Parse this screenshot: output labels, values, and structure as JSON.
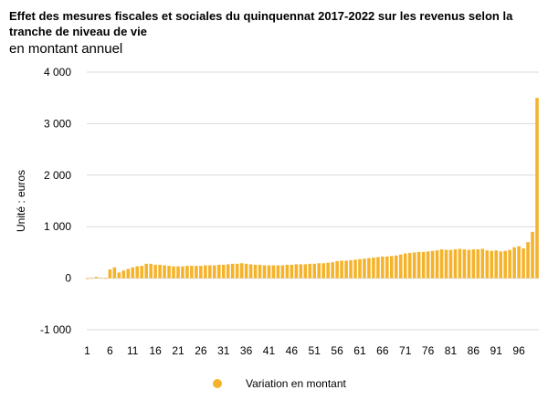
{
  "chart_data": {
    "type": "bar",
    "title": "Effet des mesures fiscales et sociales du quinquennat 2017-2022 sur les revenus selon la tranche de niveau de vie",
    "subtitle": "en montant annuel",
    "ylabel": "Unité : euros",
    "xlabel": "",
    "ylim": [
      -1000,
      4000
    ],
    "yticks": [
      -1000,
      0,
      1000,
      2000,
      3000,
      4000
    ],
    "ytick_labels": [
      "-1 000",
      "0",
      "1 000",
      "2 000",
      "3 000",
      "4 000"
    ],
    "xtick_labels": [
      "1",
      "6",
      "11",
      "16",
      "21",
      "26",
      "31",
      "36",
      "41",
      "46",
      "51",
      "56",
      "61",
      "66",
      "71",
      "76",
      "81",
      "86",
      "91",
      "96"
    ],
    "grid": "horizontal",
    "legend_position": "bottom",
    "color": "#F5B32B",
    "x": [
      1,
      2,
      3,
      4,
      5,
      6,
      7,
      8,
      9,
      10,
      11,
      12,
      13,
      14,
      15,
      16,
      17,
      18,
      19,
      20,
      21,
      22,
      23,
      24,
      25,
      26,
      27,
      28,
      29,
      30,
      31,
      32,
      33,
      34,
      35,
      36,
      37,
      38,
      39,
      40,
      41,
      42,
      43,
      44,
      45,
      46,
      47,
      48,
      49,
      50,
      51,
      52,
      53,
      54,
      55,
      56,
      57,
      58,
      59,
      60,
      61,
      62,
      63,
      64,
      65,
      66,
      67,
      68,
      69,
      70,
      71,
      72,
      73,
      74,
      75,
      76,
      77,
      78,
      79,
      80,
      81,
      82,
      83,
      84,
      85,
      86,
      87,
      88,
      89,
      90,
      91,
      92,
      93,
      94,
      95,
      96,
      97,
      98,
      99,
      100
    ],
    "series": [
      {
        "name": "Variation en montant",
        "values": [
          -15,
          -10,
          25,
          10,
          0,
          170,
          210,
          110,
          150,
          180,
          210,
          230,
          240,
          280,
          280,
          260,
          260,
          250,
          240,
          230,
          230,
          230,
          240,
          240,
          240,
          240,
          250,
          250,
          250,
          260,
          260,
          270,
          280,
          280,
          290,
          280,
          270,
          260,
          260,
          250,
          250,
          250,
          250,
          250,
          260,
          260,
          270,
          270,
          270,
          280,
          280,
          290,
          290,
          300,
          310,
          330,
          340,
          340,
          350,
          360,
          370,
          380,
          390,
          400,
          410,
          420,
          420,
          430,
          440,
          460,
          480,
          490,
          500,
          510,
          510,
          520,
          530,
          540,
          560,
          550,
          550,
          560,
          570,
          560,
          550,
          560,
          560,
          570,
          540,
          530,
          540,
          520,
          530,
          550,
          600,
          620,
          580,
          700,
          900,
          3500
        ]
      }
    ]
  }
}
